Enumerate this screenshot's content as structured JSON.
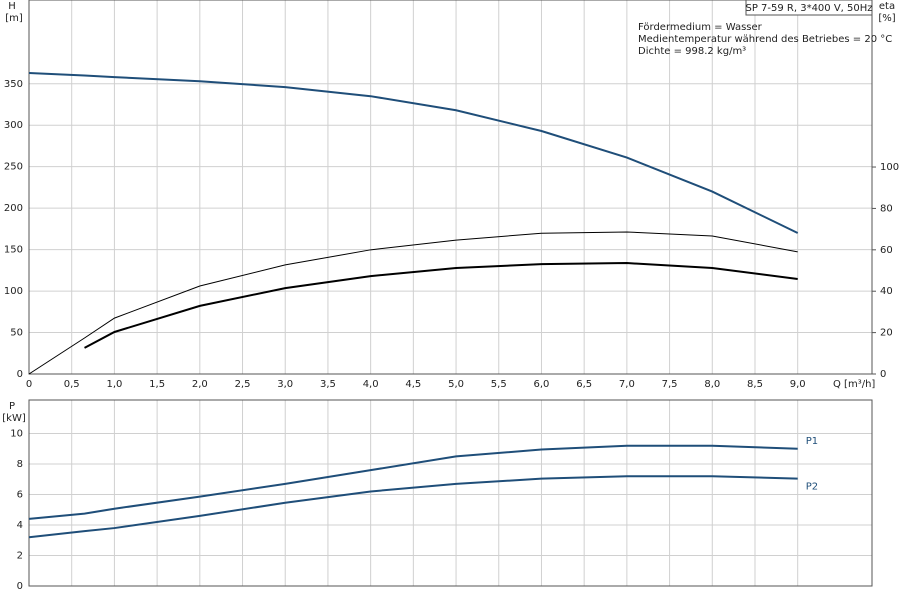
{
  "chart_data": [
    {
      "type": "line",
      "title": "SP 7-59 R, 3*400 V, 50Hz",
      "annotations": [
        "Fördermedium = Wasser",
        "Medientemperatur während des Betriebes = 20 °C",
        "Dichte = 998.2 kg/m³"
      ],
      "ylabel": "H",
      "yunit": "[m]",
      "y2label": "eta",
      "y2unit": "[%]",
      "xlabel": "Q [m³/h]",
      "xlim": [
        0,
        9.87
      ],
      "ylim": [
        0,
        451
      ],
      "y2lim": [
        0,
        180.7
      ],
      "xticks": [
        0,
        {
          "value": 0.5,
          "label": "0,5"
        },
        {
          "value": 1,
          "label": "1,0"
        },
        {
          "value": 1.5,
          "label": "1,5"
        },
        {
          "value": 2,
          "label": "2,0"
        },
        {
          "value": 2.5,
          "label": "2,5"
        },
        {
          "value": 3,
          "label": "3,0"
        },
        {
          "value": 3.5,
          "label": "3,5"
        },
        {
          "value": 4,
          "label": "4,0"
        },
        {
          "value": 4.5,
          "label": "4,5"
        },
        {
          "value": 5,
          "label": "5,0"
        },
        {
          "value": 5.5,
          "label": "5,5"
        },
        {
          "value": 6,
          "label": "6,0"
        },
        {
          "value": 6.5,
          "label": "6,5"
        },
        {
          "value": 7,
          "label": "7,0"
        },
        {
          "value": 7.5,
          "label": "7,5"
        },
        {
          "value": 8,
          "label": "8,0"
        },
        {
          "value": 8.5,
          "label": "8,5"
        },
        {
          "value": 9,
          "label": "9,0"
        }
      ],
      "yticks": [
        0,
        50,
        100,
        150,
        200,
        250,
        300,
        350
      ],
      "y2ticks": [
        0,
        20,
        40,
        60,
        80,
        100
      ],
      "grid": true,
      "x": [
        0,
        0.65,
        1,
        2,
        3,
        4,
        5,
        6,
        7,
        8,
        9
      ],
      "series": [
        {
          "color": "#1f4e79",
          "values": [
            363,
            360,
            358,
            353,
            346,
            335,
            318,
            293,
            261,
            220,
            170
          ]
        },
        {
          "color": "#000000",
          "axis": "y2",
          "values": [
            0,
            17.4,
            27,
            42.5,
            52.7,
            60,
            64.7,
            68,
            68.6,
            66.7,
            59
          ]
        },
        {
          "color": "#000000",
          "axis": "y2",
          "values": [
            null,
            12.6,
            20.3,
            32.9,
            41.5,
            47.3,
            51.2,
            53.1,
            53.6,
            51.2,
            45.9
          ]
        }
      ]
    },
    {
      "type": "line",
      "ylabel": "P",
      "yunit": "[kW]",
      "xlim": [
        0,
        9.87
      ],
      "ylim": [
        0,
        12.2
      ],
      "yticks": [
        0,
        2,
        4,
        6,
        8,
        10
      ],
      "grid": true,
      "x": [
        0,
        0.65,
        1,
        2,
        3,
        4,
        5,
        6,
        7,
        8,
        9
      ],
      "series": [
        {
          "name": "P1",
          "color": "#1f4e79",
          "values": [
            4.4,
            4.75,
            5.07,
            5.86,
            6.7,
            7.6,
            8.5,
            8.95,
            9.2,
            9.2,
            9.0
          ]
        },
        {
          "name": "P2",
          "color": "#1f4e79",
          "values": [
            3.2,
            3.6,
            3.8,
            4.6,
            5.46,
            6.2,
            6.7,
            7.04,
            7.2,
            7.2,
            7.04
          ]
        }
      ]
    }
  ]
}
